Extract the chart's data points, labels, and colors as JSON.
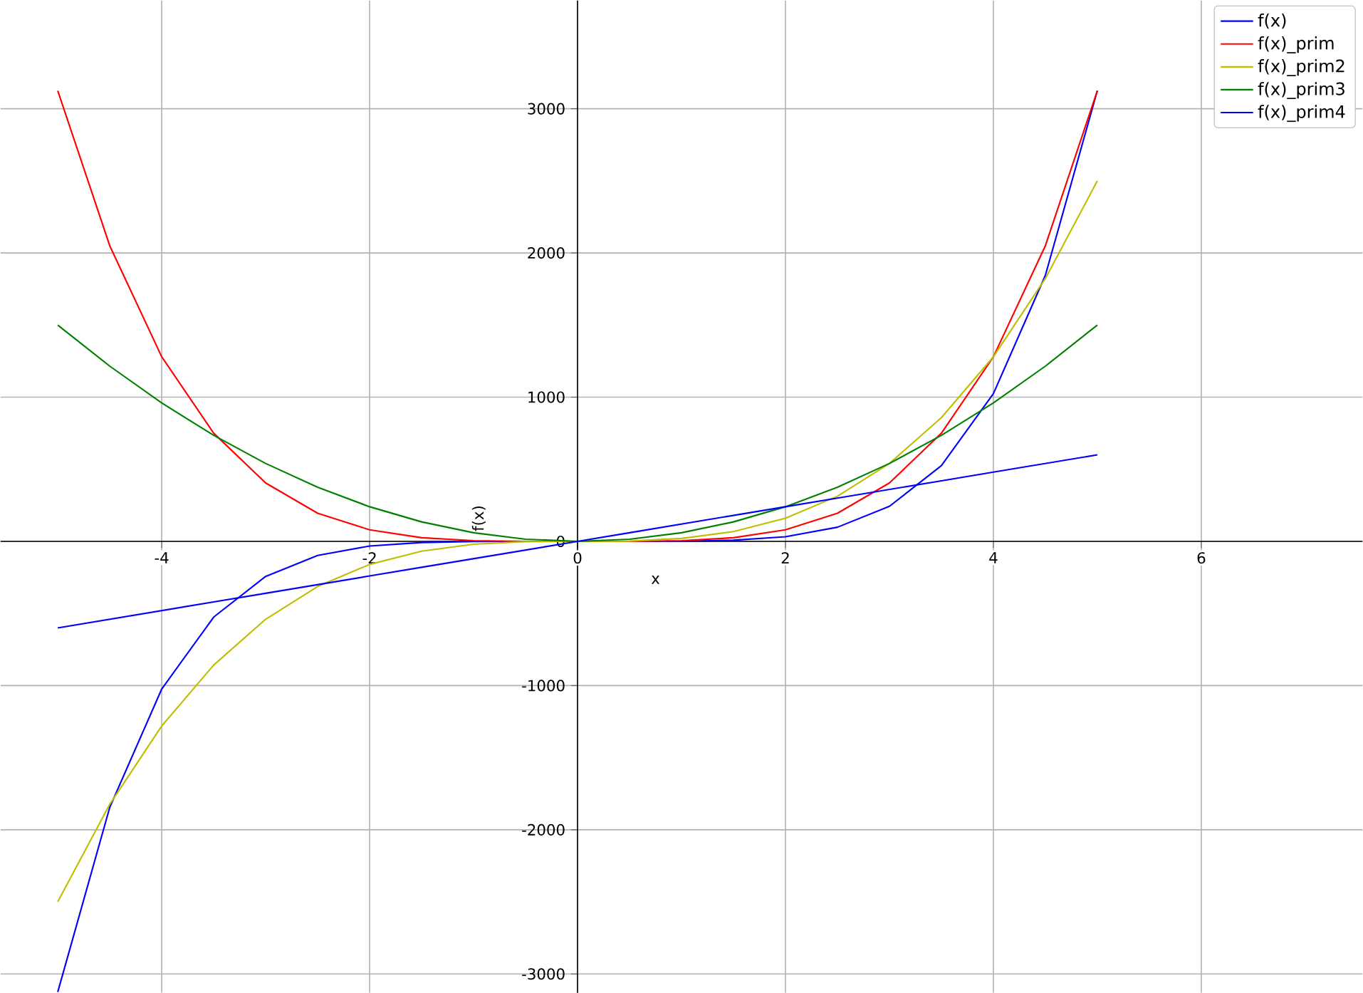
{
  "chart_data": {
    "type": "line",
    "xlabel": "x",
    "ylabel": "f(x)",
    "x": [
      -5,
      -4.5,
      -4,
      -3.5,
      -3,
      -2.5,
      -2,
      -1.5,
      -1,
      -0.5,
      0,
      0.5,
      1,
      1.5,
      2,
      2.5,
      3,
      3.5,
      4,
      4.5,
      5
    ],
    "series": [
      {
        "name": "f(x)",
        "color": "#0000ff",
        "values": [
          -3125,
          -1845,
          -1024,
          -525,
          -243,
          -98,
          -32,
          -8,
          -1,
          0,
          0,
          0,
          1,
          8,
          32,
          98,
          243,
          525,
          1024,
          1845,
          3125
        ]
      },
      {
        "name": "f(x)_prim",
        "color": "#ff0000",
        "values": [
          3125,
          2050,
          1280,
          750,
          405,
          195,
          80,
          25,
          5,
          0,
          0,
          0,
          5,
          25,
          80,
          195,
          405,
          750,
          1280,
          2050,
          3125
        ]
      },
      {
        "name": "f(x)_prim2",
        "color": "#bfbf00",
        "values": [
          -2500,
          -1823,
          -1280,
          -858,
          -540,
          -313,
          -160,
          -68,
          -20,
          -2,
          0,
          2,
          20,
          68,
          160,
          313,
          540,
          858,
          1280,
          1823,
          2500
        ]
      },
      {
        "name": "f(x)_prim3",
        "color": "#008000",
        "values": [
          1500,
          1215,
          960,
          735,
          540,
          375,
          240,
          135,
          60,
          15,
          0,
          15,
          60,
          135,
          240,
          375,
          540,
          735,
          960,
          1215,
          1500
        ]
      },
      {
        "name": "f(x)_prim4",
        "color": "#0000ff",
        "values": [
          -600,
          -540,
          -480,
          -420,
          -360,
          -300,
          -240,
          -180,
          -120,
          -60,
          0,
          60,
          120,
          180,
          240,
          300,
          360,
          420,
          480,
          540,
          600
        ]
      }
    ],
    "xlim": [
      -5.55,
      7.55
    ],
    "ylim": [
      -3130,
      3750
    ],
    "xticks": [
      -4,
      -2,
      0,
      2,
      4,
      6
    ],
    "yticks": [
      -3000,
      -2000,
      -1000,
      0,
      1000,
      2000,
      3000
    ],
    "grid": true,
    "legend": "top right"
  }
}
